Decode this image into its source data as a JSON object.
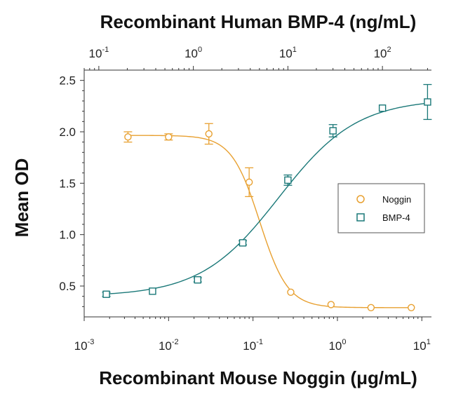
{
  "chart_data": {
    "type": "scatter",
    "title_top": "Recombinant Human BMP-4 (ng/mL)",
    "xlabel": "Recombinant Mouse Noggin (μg/mL)",
    "ylabel": "Mean OD",
    "x_scale": "log",
    "xlim": [
      0.001,
      13
    ],
    "x_ticks": [
      0.001,
      0.01,
      0.1,
      1,
      10
    ],
    "x_tick_labels": [
      {
        "base": "10",
        "exp": "-3"
      },
      {
        "base": "10",
        "exp": "-2"
      },
      {
        "base": "10",
        "exp": "-1"
      },
      {
        "base": "10",
        "exp": "0"
      },
      {
        "base": "10",
        "exp": "1"
      }
    ],
    "top_axis": {
      "scale": "log",
      "xlim": [
        0.07,
        330
      ],
      "ticks": [
        0.1,
        1,
        10,
        100
      ],
      "tick_labels": [
        {
          "base": "10",
          "exp": "-1"
        },
        {
          "base": "10",
          "exp": "0"
        },
        {
          "base": "10",
          "exp": "1"
        },
        {
          "base": "10",
          "exp": "2"
        }
      ]
    },
    "ylim": [
      0.2,
      2.6
    ],
    "y_ticks": [
      0.5,
      1.0,
      1.5,
      2.0,
      2.5
    ],
    "y_tick_labels": [
      "0.5",
      "1.0",
      "1.5",
      "2.0",
      "2.5"
    ],
    "legend": {
      "position": "right"
    },
    "series": [
      {
        "name": "Noggin",
        "axis": "bottom",
        "marker": "circle",
        "color": "#e8a030",
        "x": [
          0.0033,
          0.01,
          0.03,
          0.09,
          0.28,
          0.84,
          2.5,
          7.5
        ],
        "y": [
          1.95,
          1.95,
          1.98,
          1.51,
          0.44,
          0.32,
          0.29,
          0.29
        ],
        "err": [
          0.05,
          0.03,
          0.1,
          0.14,
          0.01,
          0.01,
          0.01,
          0.01
        ],
        "fit": {
          "bottom": 0.29,
          "top": 1.965,
          "ec50": 0.12,
          "hill": 2.6
        }
      },
      {
        "name": "BMP-4",
        "axis": "top",
        "marker": "square",
        "color": "#1a7878",
        "x": [
          0.12,
          0.37,
          1.11,
          3.33,
          10,
          30,
          100,
          300
        ],
        "y": [
          0.42,
          0.45,
          0.56,
          0.92,
          1.53,
          2.01,
          2.23,
          2.29
        ],
        "err": [
          0.02,
          0.01,
          0.02,
          0.02,
          0.05,
          0.06,
          0.01,
          0.17
        ],
        "fit": {
          "bottom": 0.4,
          "top": 2.32,
          "ec50": 8.0,
          "hill": 1.05
        }
      }
    ]
  }
}
